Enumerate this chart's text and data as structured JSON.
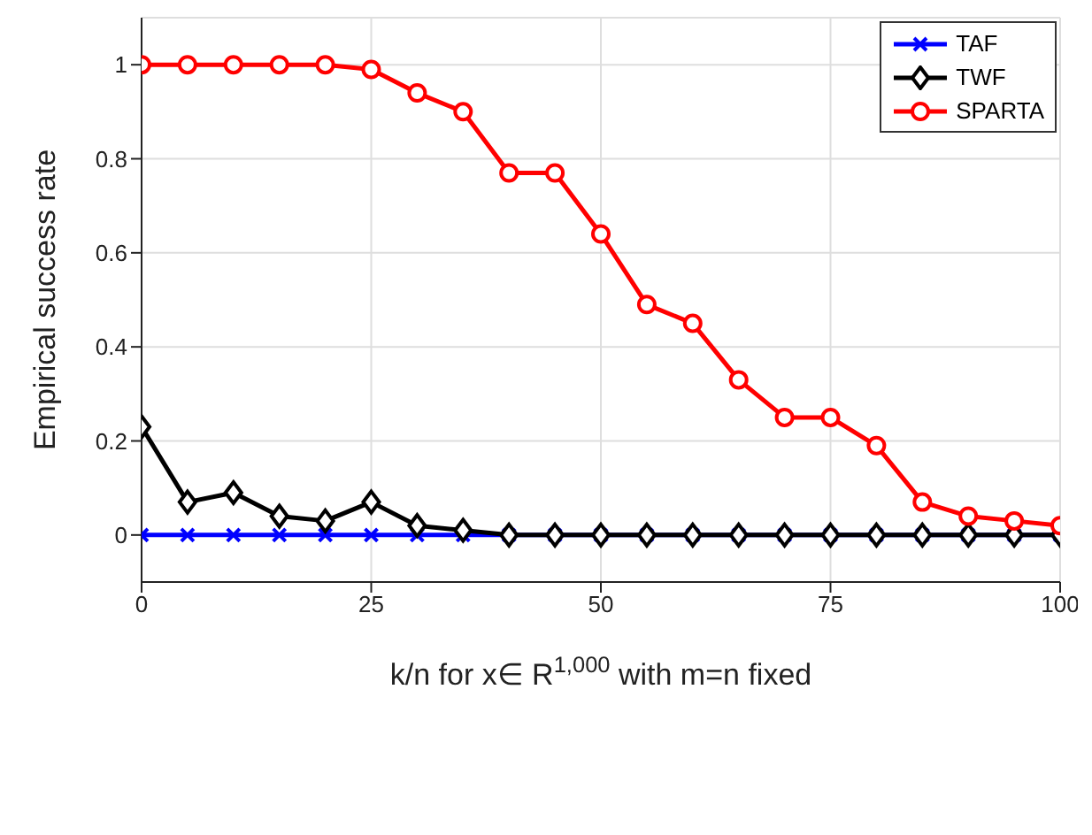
{
  "chart_data": {
    "type": "line",
    "xlabel": "k/n for x∈ R$^{1,000}$ with m=n fixed",
    "ylabel": "Empirical success rate",
    "x": [
      0,
      5,
      10,
      15,
      20,
      25,
      30,
      35,
      40,
      45,
      50,
      55,
      60,
      65,
      70,
      75,
      80,
      85,
      90,
      95,
      100
    ],
    "series": [
      {
        "name": "TAF",
        "color": "#0000ff",
        "marker": "cross",
        "values": [
          0,
          0,
          0,
          0,
          0,
          0,
          0,
          0,
          0,
          0,
          0,
          0,
          0,
          0,
          0,
          0,
          0,
          0,
          0,
          0,
          0
        ]
      },
      {
        "name": "TWF",
        "color": "#000000",
        "marker": "diamond",
        "values": [
          0.23,
          0.07,
          0.09,
          0.04,
          0.03,
          0.07,
          0.02,
          0.01,
          0,
          0,
          0,
          0,
          0,
          0,
          0,
          0,
          0,
          0,
          0,
          0,
          0
        ]
      },
      {
        "name": "SPARTA",
        "color": "#ff0000",
        "marker": "circle",
        "values": [
          1,
          1,
          1,
          1,
          1,
          0.99,
          0.94,
          0.9,
          0.77,
          0.77,
          0.64,
          0.49,
          0.45,
          0.33,
          0.25,
          0.25,
          0.19,
          0.07,
          0.04,
          0.03,
          0.02
        ]
      }
    ],
    "xlim": [
      0,
      100
    ],
    "xticks": [
      0,
      25,
      50,
      75,
      100
    ],
    "ylim": [
      -0.1,
      1.1
    ],
    "yticks": [
      0,
      0.2,
      0.4,
      0.6,
      0.8,
      1
    ],
    "grid": true,
    "legend": "top right"
  }
}
